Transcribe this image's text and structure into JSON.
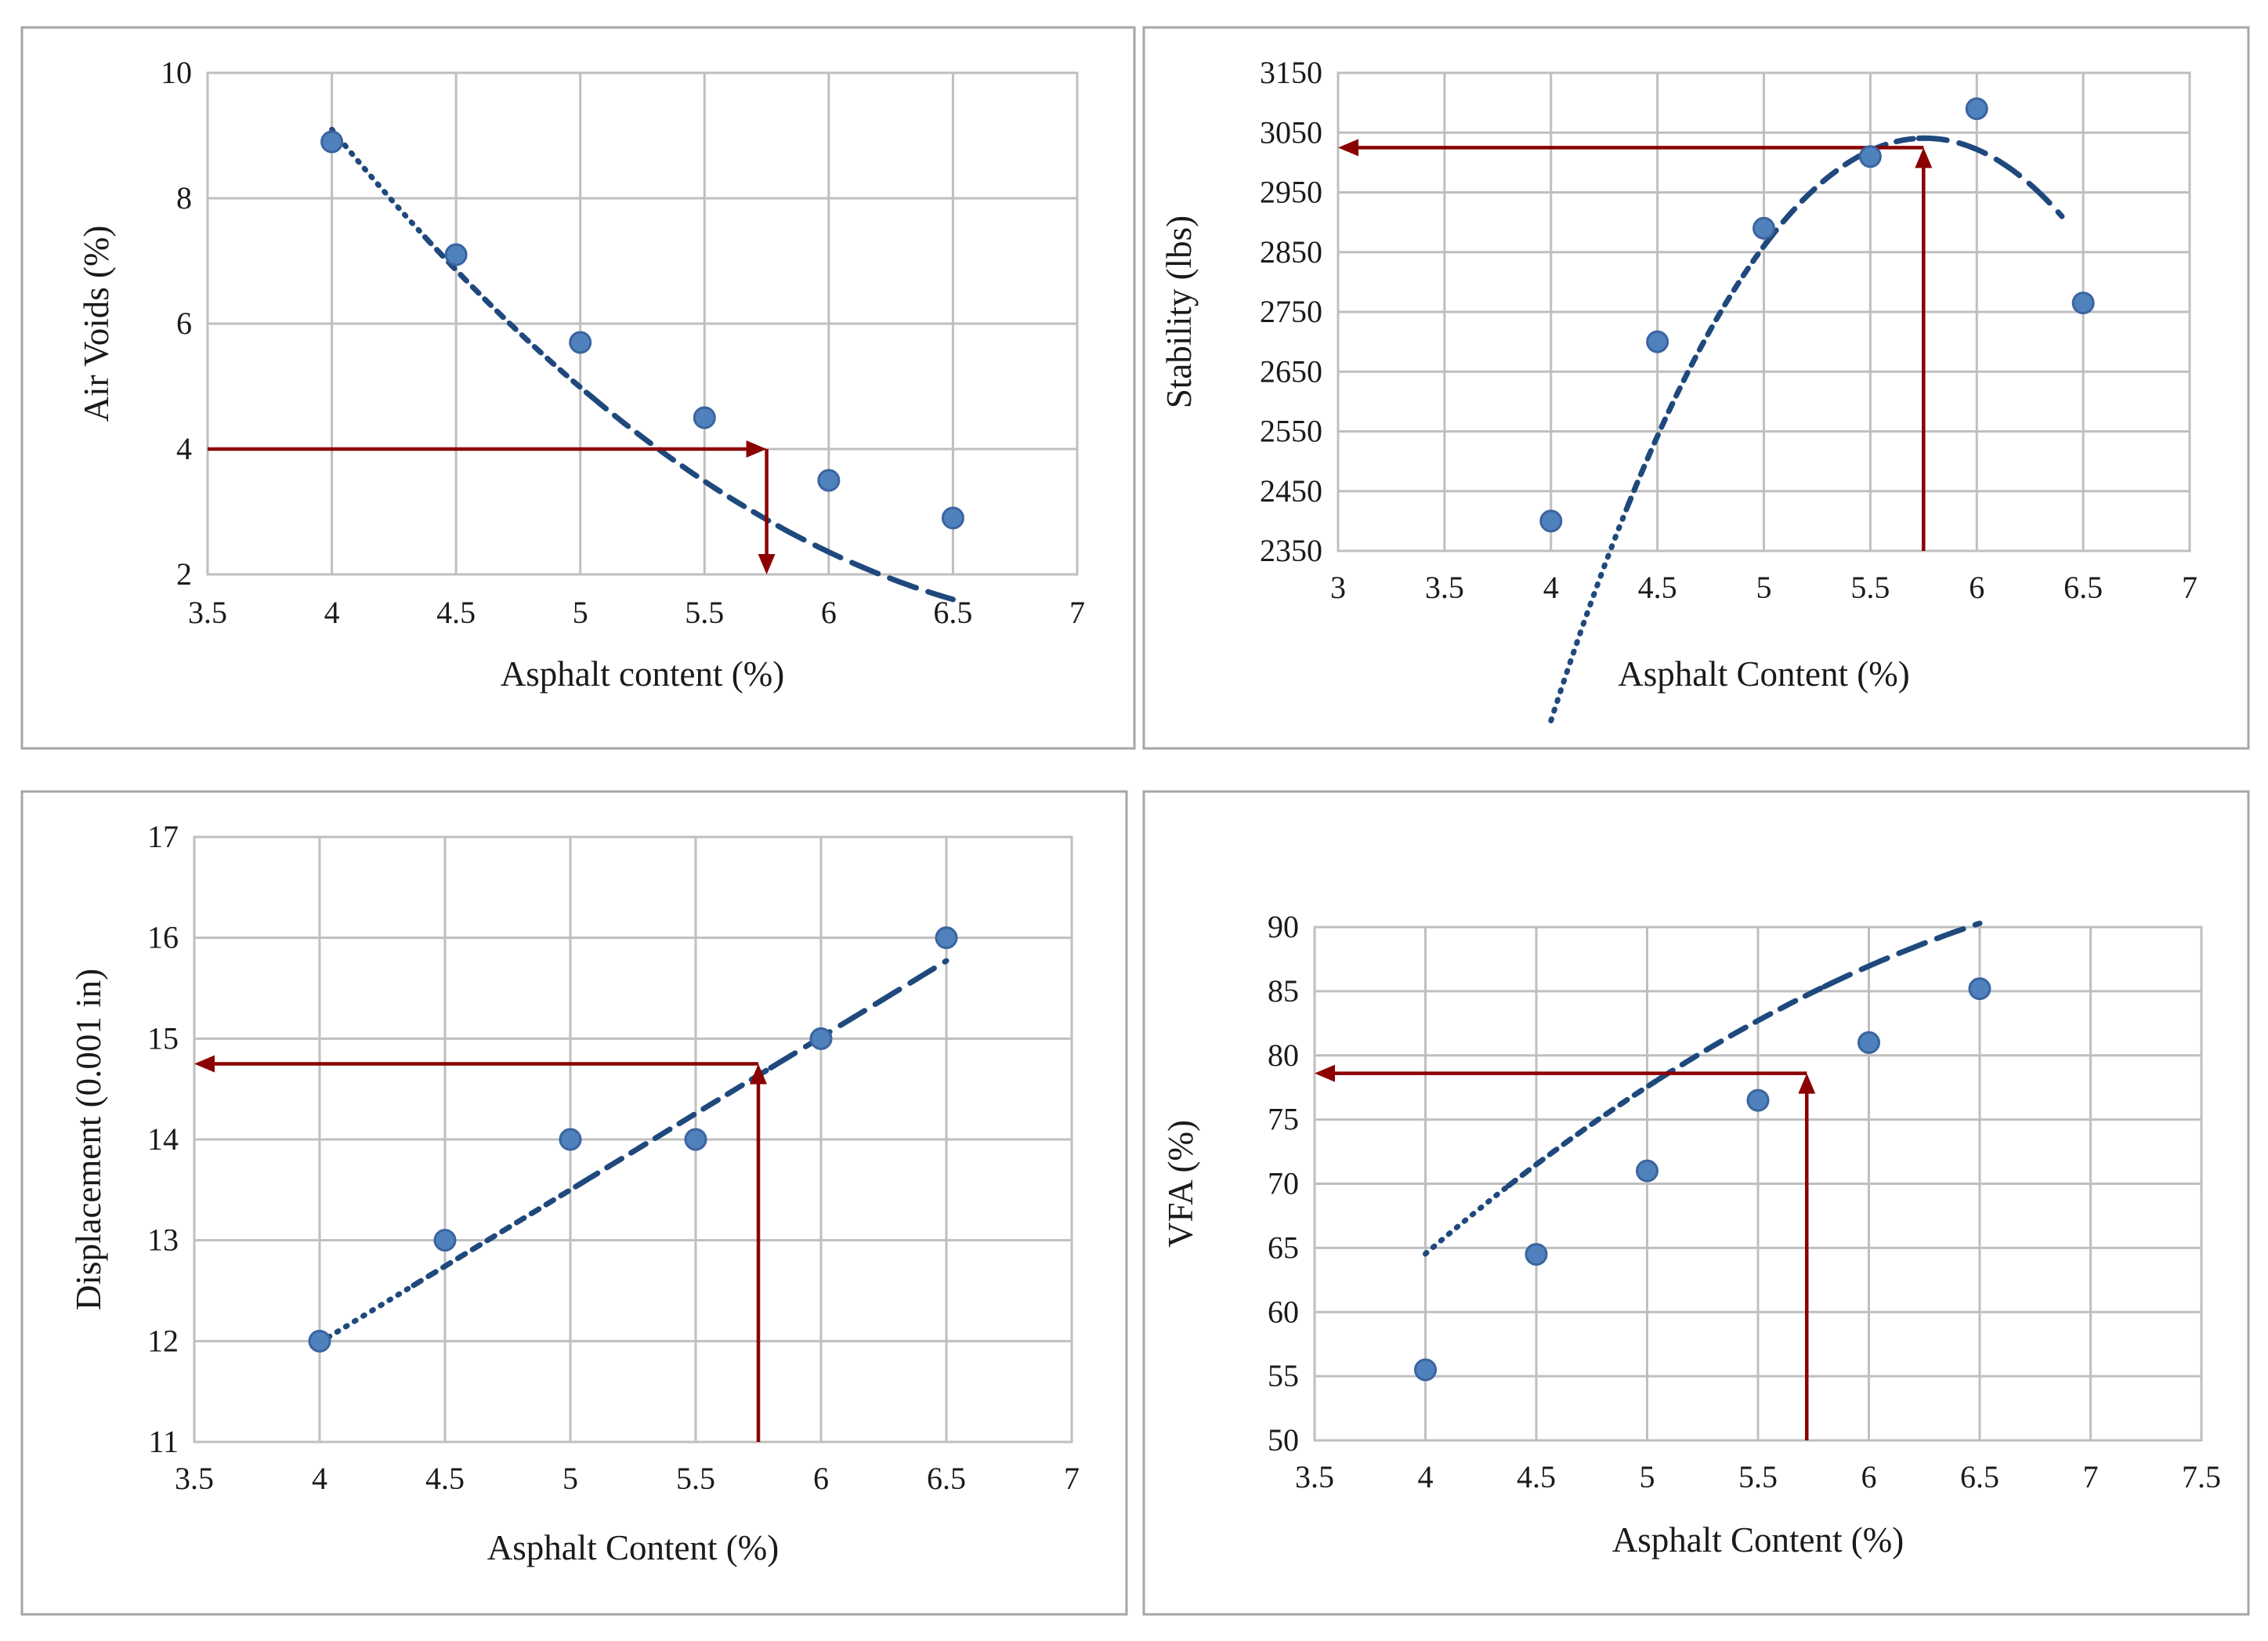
{
  "figure": {
    "colors": {
      "marker": "#4f81bd",
      "trendline": "#1f497d",
      "guide": "#8b0000",
      "grid": "#bfbfbf"
    }
  },
  "chart_data": [
    {
      "id": "air-voids",
      "type": "scatter",
      "xlabel": "Asphalt content (%)",
      "ylabel": "Air Voids (%)",
      "xlim": [
        3.5,
        7
      ],
      "ylim": [
        2,
        10
      ],
      "xticks": [
        3.5,
        4,
        4.5,
        5,
        5.5,
        6,
        6.5,
        7
      ],
      "yticks": [
        2,
        4,
        6,
        8,
        10
      ],
      "x": [
        4,
        4.5,
        5,
        5.5,
        6,
        6.5
      ],
      "y": [
        8.9,
        7.1,
        5.7,
        4.5,
        3.5,
        2.9
      ],
      "trendline": {
        "type": "polynomial-2",
        "coefficients": [
          40.41,
          -10.8,
          0.743
        ],
        "x_range": [
          4,
          6.5
        ]
      },
      "design_point": {
        "x": 5.75,
        "y": 4
      },
      "guide_direction": "from-y-axis-to-curve-then-down"
    },
    {
      "id": "stability",
      "type": "scatter",
      "xlabel": "Asphalt Content (%)",
      "ylabel": "Stability (lbs)",
      "xlim": [
        3,
        7
      ],
      "ylim": [
        2350,
        3150
      ],
      "xticks": [
        3,
        3.5,
        4,
        4.5,
        5,
        5.5,
        6,
        6.5,
        7
      ],
      "yticks": [
        2350,
        2450,
        2550,
        2650,
        2750,
        2850,
        2950,
        3050,
        3150
      ],
      "x": [
        4,
        4.5,
        5,
        5.5,
        6,
        6.5
      ],
      "y": [
        2400,
        2700,
        2890,
        3010,
        3090,
        2765
      ],
      "trendline": {
        "type": "polynomial-2",
        "coefficients": [
          -7430,
          3638,
          -316
        ],
        "x_range": [
          4,
          6.4
        ]
      },
      "design_point": {
        "x": 5.75,
        "y": 3025
      },
      "guide_direction": "from-bottom-to-curve-then-to-y-axis"
    },
    {
      "id": "displacement",
      "type": "scatter",
      "xlabel": "Asphalt Content (%)",
      "ylabel": "Displacement (0.001 in)",
      "xlim": [
        3.5,
        7
      ],
      "ylim": [
        11,
        17
      ],
      "xticks": [
        3.5,
        4,
        4.5,
        5,
        5.5,
        6,
        6.5,
        7
      ],
      "yticks": [
        11,
        12,
        13,
        14,
        15,
        16,
        17
      ],
      "x": [
        4,
        4.5,
        5,
        5.5,
        6,
        6.5
      ],
      "y": [
        12,
        13,
        14,
        14,
        15,
        16
      ],
      "trendline": {
        "type": "linear",
        "coefficients": [
          5.93,
          1.514
        ],
        "x_range": [
          4,
          6.5
        ]
      },
      "design_point": {
        "x": 5.75,
        "y": 14.75
      },
      "guide_direction": "from-bottom-to-curve-then-to-y-axis"
    },
    {
      "id": "vfa",
      "type": "scatter",
      "xlabel": "Asphalt Content (%)",
      "ylabel": "VFA (%)",
      "xlim": [
        3.5,
        7.5
      ],
      "ylim": [
        50,
        90
      ],
      "xticks": [
        3.5,
        4,
        4.5,
        5,
        5.5,
        6,
        6.5,
        7,
        7.5
      ],
      "yticks": [
        50,
        55,
        60,
        65,
        70,
        75,
        80,
        85,
        90
      ],
      "x": [
        4,
        4.5,
        5,
        5.5,
        6,
        6.5
      ],
      "y": [
        55.5,
        64.5,
        71,
        76.5,
        81,
        85.2
      ],
      "trendline": {
        "type": "polynomial-2",
        "coefficients": [
          -23.84,
          29.35,
          -1.814
        ],
        "x_range": [
          4,
          6.5
        ]
      },
      "design_point": {
        "x": 5.72,
        "y": 78.6
      },
      "guide_direction": "from-bottom-to-curve-then-to-y-axis"
    }
  ]
}
